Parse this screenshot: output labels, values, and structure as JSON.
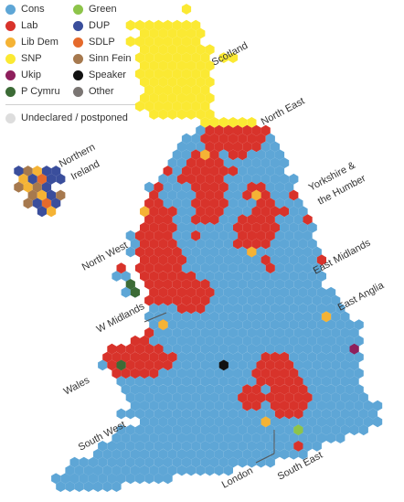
{
  "legend": {
    "parties": [
      {
        "key": "cons",
        "label": "Cons",
        "color": "#5ea6d6"
      },
      {
        "key": "green",
        "label": "Green",
        "color": "#8dc44a"
      },
      {
        "key": "lab",
        "label": "Lab",
        "color": "#d8332b"
      },
      {
        "key": "dup",
        "label": "DUP",
        "color": "#3a4e9c"
      },
      {
        "key": "libdem",
        "label": "Lib Dem",
        "color": "#f5b335"
      },
      {
        "key": "sdlp",
        "label": "SDLP",
        "color": "#e56a2c"
      },
      {
        "key": "snp",
        "label": "SNP",
        "color": "#fbe933"
      },
      {
        "key": "sinnfein",
        "label": "Sinn Fein",
        "color": "#a6794e"
      },
      {
        "key": "ukip",
        "label": "Ukip",
        "color": "#8e1f5c"
      },
      {
        "key": "speaker",
        "label": "Speaker",
        "color": "#111111"
      },
      {
        "key": "pcymru",
        "label": "P Cymru",
        "color": "#3c6b36"
      },
      {
        "key": "other",
        "label": "Other",
        "color": "#7a7573"
      }
    ],
    "undeclared": {
      "label": "Undeclared / postponed",
      "color": "#dddddd"
    }
  },
  "regions": {
    "scotland": "Scotland",
    "north_east": "North East",
    "northern_ireland_1": "Northern",
    "northern_ireland_2": "Ireland",
    "yorkshire_1": "Yorkshire &",
    "yorkshire_2": "the Humber",
    "north_west": "North West",
    "east_midlands": "East Midlands",
    "east_anglia": "East Anglia",
    "w_midlands": "W Midlands",
    "wales": "Wales",
    "south_west": "South West",
    "london": "London",
    "south_east": "South East"
  }
}
